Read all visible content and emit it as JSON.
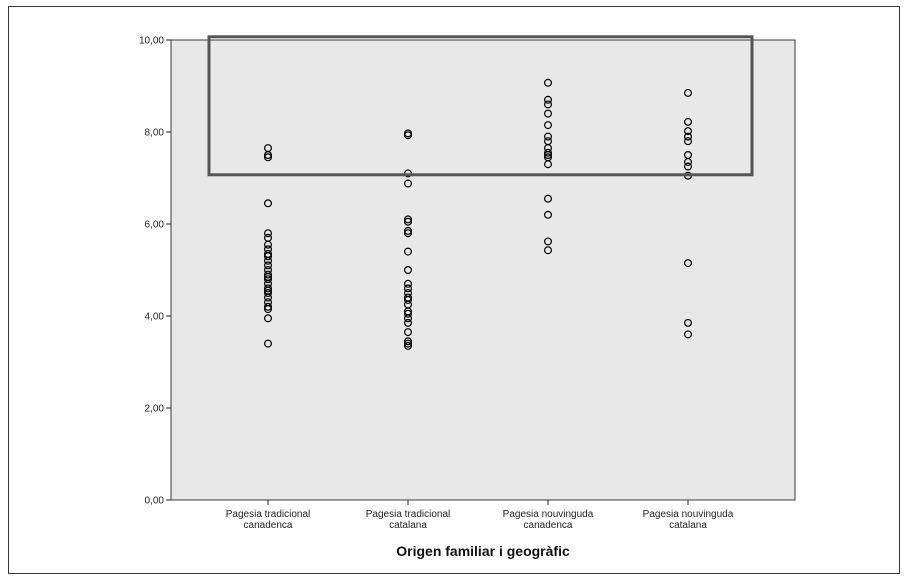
{
  "chart_data": {
    "type": "scatter",
    "title": "",
    "xlabel": "Origen familiar i geogràfic",
    "ylabel": "",
    "ylim": [
      0,
      10
    ],
    "yticks": [
      "0,00",
      "2,00",
      "4,00",
      "6,00",
      "8,00",
      "10,00"
    ],
    "grid": false,
    "categories": [
      [
        "Pagesia tradicional",
        "canadenca"
      ],
      [
        "Pagesia tradicional",
        "catalana"
      ],
      [
        "Pagesia nouvinguda",
        "canadenca"
      ],
      [
        "Pagesia nouvinguda",
        "catalana"
      ]
    ],
    "series": [
      {
        "category_index": 0,
        "values": [
          7.65,
          7.5,
          7.45,
          6.45,
          5.8,
          5.7,
          5.55,
          5.45,
          5.35,
          5.3,
          5.2,
          5.1,
          5.0,
          4.9,
          4.85,
          4.8,
          4.7,
          4.6,
          4.55,
          4.5,
          4.4,
          4.3,
          4.2,
          4.15,
          3.95,
          3.4
        ]
      },
      {
        "category_index": 1,
        "values": [
          7.97,
          7.93,
          7.1,
          6.88,
          6.1,
          6.05,
          5.85,
          5.8,
          5.4,
          5.0,
          4.7,
          4.6,
          4.5,
          4.4,
          4.35,
          4.25,
          4.1,
          4.05,
          3.95,
          3.85,
          3.65,
          3.45,
          3.4,
          3.35
        ]
      },
      {
        "category_index": 2,
        "values": [
          9.07,
          8.7,
          8.6,
          8.4,
          8.15,
          7.9,
          7.8,
          7.65,
          7.55,
          7.5,
          7.45,
          7.3,
          6.55,
          6.2,
          5.62,
          5.43
        ]
      },
      {
        "category_index": 3,
        "values": [
          8.85,
          8.22,
          8.02,
          7.9,
          7.8,
          7.5,
          7.35,
          7.25,
          7.05,
          5.15,
          3.85,
          3.6
        ]
      }
    ],
    "annotation_box": {
      "y_min": 7.07,
      "y_max": 10.07
    },
    "colors": {
      "plot_background": "#e8e8e8",
      "marker_stroke": "#000000",
      "annotation_box": "#555555"
    }
  }
}
